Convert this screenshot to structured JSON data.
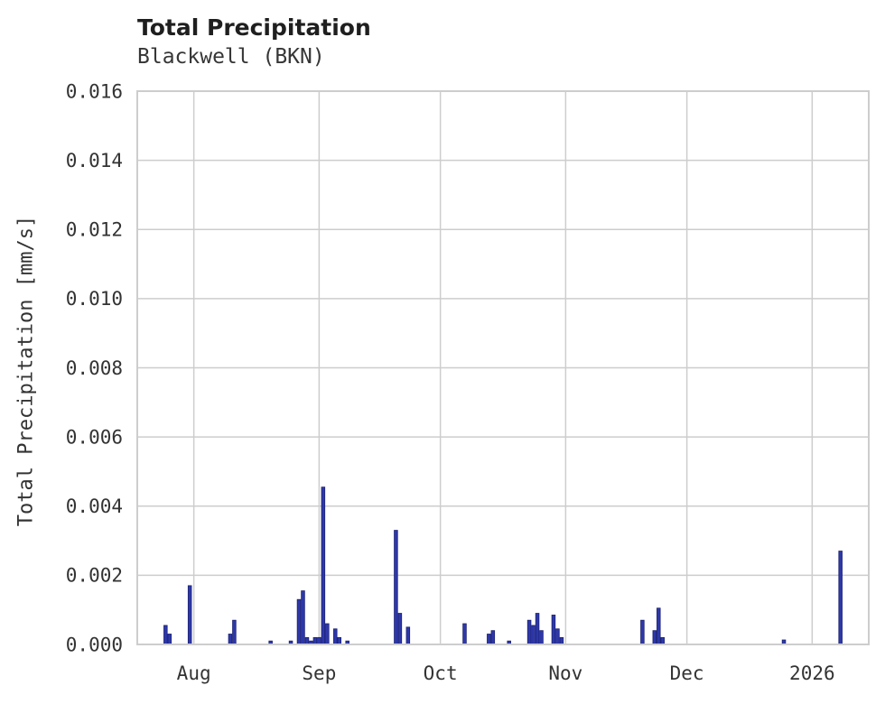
{
  "header": {
    "title": "Total Precipitation",
    "subtitle": "Blackwell (BKN)"
  },
  "chart_data": {
    "type": "bar",
    "title": "Total Precipitation",
    "subtitle": "Blackwell (BKN)",
    "xlabel": "",
    "ylabel": "Total Precipitation [mm/s]",
    "ylim": [
      0,
      0.016
    ],
    "grid": true,
    "legend": "none",
    "bar_color": "#2e38ab",
    "bar_edge_color": "#1b2270",
    "grid_color": "#cdcdcd",
    "text_color": "#333333",
    "x_domain": [
      "2025-07-18",
      "2026-01-15"
    ],
    "x_ticks": [
      {
        "date": "2025-08-01",
        "label": "Aug"
      },
      {
        "date": "2025-09-01",
        "label": "Sep"
      },
      {
        "date": "2025-10-01",
        "label": "Oct"
      },
      {
        "date": "2025-11-01",
        "label": "Nov"
      },
      {
        "date": "2025-12-01",
        "label": "Dec"
      },
      {
        "date": "2026-01-01",
        "label": "2026"
      }
    ],
    "y_ticks": [
      {
        "value": 0.0,
        "label": "0.000"
      },
      {
        "value": 0.002,
        "label": "0.002"
      },
      {
        "value": 0.004,
        "label": "0.004"
      },
      {
        "value": 0.006,
        "label": "0.006"
      },
      {
        "value": 0.008,
        "label": "0.008"
      },
      {
        "value": 0.01,
        "label": "0.010"
      },
      {
        "value": 0.012,
        "label": "0.012"
      },
      {
        "value": 0.014,
        "label": "0.014"
      },
      {
        "value": 0.016,
        "label": "0.016"
      }
    ],
    "points": [
      {
        "date": "2025-07-25",
        "value": 0.00055
      },
      {
        "date": "2025-07-26",
        "value": 0.0003
      },
      {
        "date": "2025-07-31",
        "value": 0.0017
      },
      {
        "date": "2025-08-10",
        "value": 0.0003
      },
      {
        "date": "2025-08-11",
        "value": 0.0007
      },
      {
        "date": "2025-08-20",
        "value": 0.0001
      },
      {
        "date": "2025-08-25",
        "value": 0.0001
      },
      {
        "date": "2025-08-27",
        "value": 0.0013
      },
      {
        "date": "2025-08-28",
        "value": 0.00155
      },
      {
        "date": "2025-08-29",
        "value": 0.0002
      },
      {
        "date": "2025-08-30",
        "value": 0.0001
      },
      {
        "date": "2025-08-31",
        "value": 0.0002
      },
      {
        "date": "2025-09-01",
        "value": 0.0002
      },
      {
        "date": "2025-09-02",
        "value": 0.00455
      },
      {
        "date": "2025-09-03",
        "value": 0.0006
      },
      {
        "date": "2025-09-05",
        "value": 0.00045
      },
      {
        "date": "2025-09-06",
        "value": 0.0002
      },
      {
        "date": "2025-09-08",
        "value": 0.0001
      },
      {
        "date": "2025-09-20",
        "value": 0.0033
      },
      {
        "date": "2025-09-21",
        "value": 0.0009
      },
      {
        "date": "2025-09-23",
        "value": 0.0005
      },
      {
        "date": "2025-10-07",
        "value": 0.0006
      },
      {
        "date": "2025-10-13",
        "value": 0.0003
      },
      {
        "date": "2025-10-14",
        "value": 0.0004
      },
      {
        "date": "2025-10-18",
        "value": 0.0001
      },
      {
        "date": "2025-10-23",
        "value": 0.0007
      },
      {
        "date": "2025-10-24",
        "value": 0.00055
      },
      {
        "date": "2025-10-25",
        "value": 0.0009
      },
      {
        "date": "2025-10-26",
        "value": 0.0004
      },
      {
        "date": "2025-10-29",
        "value": 0.00085
      },
      {
        "date": "2025-10-30",
        "value": 0.00045
      },
      {
        "date": "2025-10-31",
        "value": 0.0002
      },
      {
        "date": "2025-11-20",
        "value": 0.0007
      },
      {
        "date": "2025-11-23",
        "value": 0.0004
      },
      {
        "date": "2025-11-24",
        "value": 0.00105
      },
      {
        "date": "2025-11-25",
        "value": 0.0002
      },
      {
        "date": "2025-12-25",
        "value": 0.00013
      },
      {
        "date": "2026-01-08",
        "value": 0.0027
      }
    ]
  }
}
